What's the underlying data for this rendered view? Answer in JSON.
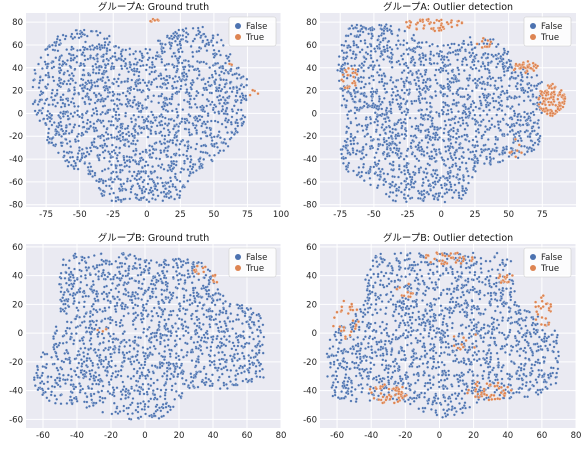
{
  "colors": {
    "false": "#4c72b0",
    "true": "#dd8452",
    "background": "#eaeaf2"
  },
  "chart_data": [
    {
      "type": "scatter",
      "title": "グループA: Ground truth",
      "xlim": [
        -90,
        100
      ],
      "ylim": [
        -82,
        88
      ],
      "xticks": [
        -75,
        -50,
        -25,
        0,
        25,
        50,
        75,
        100
      ],
      "yticks": [
        -80,
        -60,
        -40,
        -20,
        0,
        20,
        40,
        60,
        80
      ],
      "legend": {
        "position": "top-right",
        "entries": [
          "False",
          "True"
        ]
      },
      "cluster": {
        "cx": -5,
        "cy": 0,
        "rx": 80,
        "ry": 78
      },
      "series": [
        {
          "name": "False",
          "n": 1900
        },
        {
          "name": "True",
          "regions": [
            {
              "cx": 5,
              "cy": 82,
              "rx": 4,
              "ry": 3,
              "n": 6
            },
            {
              "cx": 62,
              "cy": 44,
              "rx": 3,
              "ry": 3,
              "n": 3
            },
            {
              "cx": 80,
              "cy": 18,
              "rx": 4,
              "ry": 4,
              "n": 4
            }
          ]
        }
      ]
    },
    {
      "type": "scatter",
      "title": "グループA: Outlier detection",
      "xlim": [
        -90,
        100
      ],
      "ylim": [
        -82,
        88
      ],
      "xticks": [
        -75,
        -50,
        -25,
        0,
        25,
        50,
        75
      ],
      "yticks": [
        -80,
        -60,
        -40,
        -20,
        0,
        20,
        40,
        60,
        80
      ],
      "legend": {
        "position": "top-right",
        "entries": [
          "False",
          "True"
        ]
      },
      "cluster": {
        "cx": -5,
        "cy": 0,
        "rx": 80,
        "ry": 78
      },
      "series": [
        {
          "name": "False",
          "n": 1900
        },
        {
          "name": "True",
          "regions": [
            {
              "cx": 82,
              "cy": 12,
              "rx": 10,
              "ry": 14,
              "n": 110
            },
            {
              "cx": 62,
              "cy": 40,
              "rx": 10,
              "ry": 6,
              "n": 35
            },
            {
              "cx": -5,
              "cy": 78,
              "rx": 22,
              "ry": 6,
              "n": 50
            },
            {
              "cx": -68,
              "cy": 30,
              "rx": 8,
              "ry": 10,
              "n": 22
            },
            {
              "cx": 30,
              "cy": 60,
              "rx": 8,
              "ry": 6,
              "n": 10
            },
            {
              "cx": 55,
              "cy": -30,
              "rx": 6,
              "ry": 8,
              "n": 8
            }
          ]
        }
      ]
    },
    {
      "type": "scatter",
      "title": "グループB: Ground truth",
      "xlim": [
        -70,
        80
      ],
      "ylim": [
        -66,
        62
      ],
      "xticks": [
        -60,
        -40,
        -20,
        0,
        20,
        40,
        60,
        80
      ],
      "yticks": [
        -60,
        -40,
        -20,
        0,
        20,
        40,
        60
      ],
      "legend": {
        "position": "top-right",
        "entries": [
          "False",
          "True"
        ]
      },
      "cluster": {
        "cx": 2,
        "cy": -2,
        "rx": 68,
        "ry": 58
      },
      "series": [
        {
          "name": "False",
          "n": 1700
        },
        {
          "name": "True",
          "regions": [
            {
              "cx": 32,
              "cy": 44,
              "rx": 5,
              "ry": 3,
              "n": 10
            },
            {
              "cx": 42,
              "cy": 38,
              "rx": 3,
              "ry": 3,
              "n": 6
            },
            {
              "cx": -25,
              "cy": 2,
              "rx": 3,
              "ry": 2,
              "n": 3
            }
          ]
        }
      ]
    },
    {
      "type": "scatter",
      "title": "グループB: Outlier detection",
      "xlim": [
        -70,
        80
      ],
      "ylim": [
        -66,
        62
      ],
      "xticks": [
        -60,
        -40,
        -20,
        0,
        20,
        40,
        60,
        80
      ],
      "yticks": [
        -60,
        -40,
        -20,
        0,
        20,
        40,
        60
      ],
      "legend": {
        "position": "top-right",
        "entries": [
          "False",
          "True"
        ]
      },
      "cluster": {
        "cx": 2,
        "cy": -2,
        "rx": 68,
        "ry": 58
      },
      "series": [
        {
          "name": "False",
          "n": 1700
        },
        {
          "name": "True",
          "regions": [
            {
              "cx": -30,
              "cy": -42,
              "rx": 12,
              "ry": 7,
              "n": 45
            },
            {
              "cx": 30,
              "cy": -40,
              "rx": 14,
              "ry": 8,
              "n": 40
            },
            {
              "cx": 5,
              "cy": 52,
              "rx": 15,
              "ry": 5,
              "n": 35
            },
            {
              "cx": -55,
              "cy": 10,
              "rx": 8,
              "ry": 14,
              "n": 30
            },
            {
              "cx": 60,
              "cy": 15,
              "rx": 6,
              "ry": 12,
              "n": 25
            },
            {
              "cx": 40,
              "cy": 38,
              "rx": 6,
              "ry": 4,
              "n": 15
            },
            {
              "cx": -20,
              "cy": 30,
              "rx": 6,
              "ry": 6,
              "n": 10
            },
            {
              "cx": 15,
              "cy": -5,
              "rx": 8,
              "ry": 8,
              "n": 10
            }
          ]
        }
      ]
    }
  ]
}
